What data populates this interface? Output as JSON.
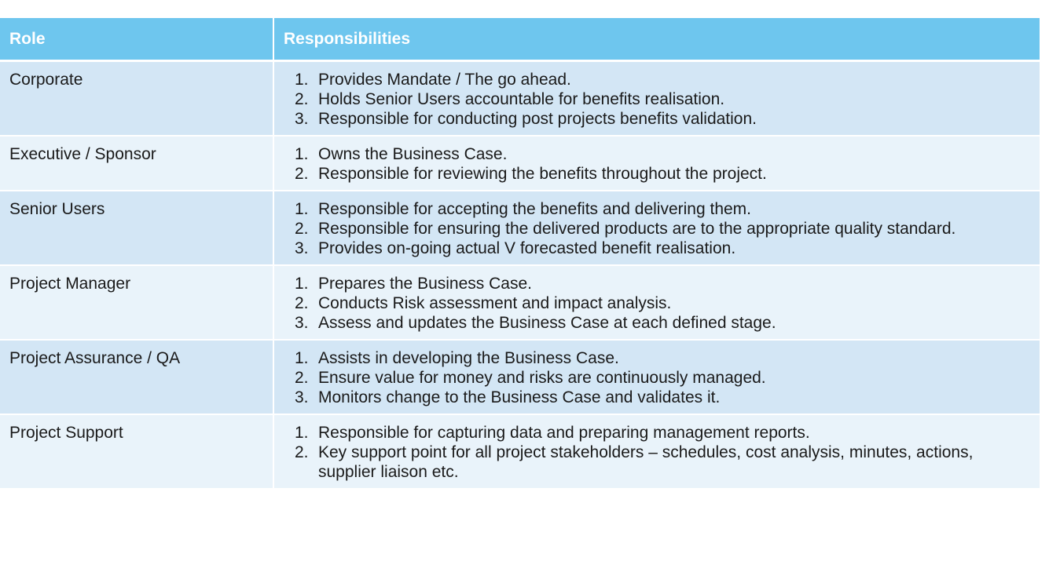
{
  "header": {
    "role": "Role",
    "responsibilities": "Responsibilities"
  },
  "rows": [
    {
      "role": "Corporate",
      "items": [
        "Provides Mandate / The go ahead.",
        "Holds Senior Users accountable for benefits realisation.",
        "Responsible for conducting post projects benefits validation."
      ]
    },
    {
      "role": "Executive / Sponsor",
      "items": [
        "Owns the Business Case.",
        "Responsible for reviewing the benefits throughout the project."
      ]
    },
    {
      "role": "Senior Users",
      "items": [
        "Responsible for accepting the benefits and delivering them.",
        "Responsible for ensuring the delivered products are to the appropriate quality standard.",
        "Provides on-going actual V forecasted benefit realisation."
      ]
    },
    {
      "role": "Project Manager",
      "items": [
        "Prepares the Business Case.",
        "Conducts Risk assessment and impact analysis.",
        "Assess and updates the Business Case at each defined stage."
      ]
    },
    {
      "role": "Project Assurance / QA",
      "items": [
        "Assists in developing the Business Case.",
        "Ensure value for money and risks are continuously managed.",
        "Monitors change to the Business Case and validates it."
      ]
    },
    {
      "role": "Project Support",
      "items": [
        "Responsible for capturing data and preparing management reports.",
        "Key support point for all project stakeholders – schedules, cost analysis, minutes, actions, supplier liaison etc."
      ]
    }
  ],
  "colors": {
    "header_bg": "#6ec6ee",
    "row_odd_bg": "#d3e6f5",
    "row_even_bg": "#e9f3fa"
  }
}
